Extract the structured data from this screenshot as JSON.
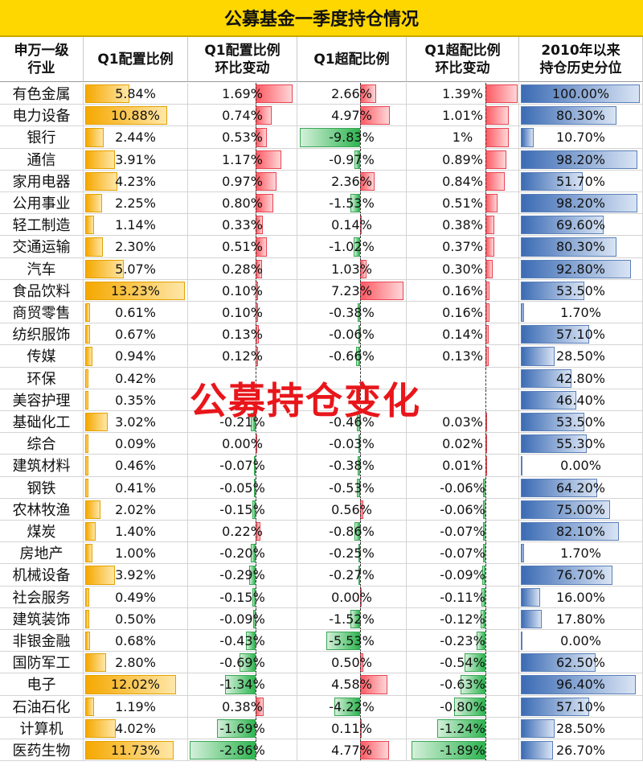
{
  "title": "公募基金一季度持仓情况",
  "overlay_text": "公募持仓变化",
  "headers": [
    "申万一级\n行业",
    "Q1配置比例",
    "Q1配置比例\n环比变动",
    "Q1超配比例",
    "Q1超配比例\n环比变动",
    "2010年以来\n持仓历史分位"
  ],
  "colors": {
    "header_bg": "#ffd700",
    "allocation": "#f5a800",
    "positive": "#ff5a63",
    "negative": "#2fb551",
    "percentile": "#3b6bb4",
    "overlay": "#e8161b"
  },
  "chart_data": {
    "type": "table",
    "title": "公募基金一季度持仓情况",
    "columns": [
      "申万一级行业",
      "Q1配置比例",
      "Q1配置比例环比变动",
      "Q1超配比例",
      "Q1超配比例环比变动",
      "2010年以来持仓历史分位"
    ],
    "rows": [
      [
        "有色金属",
        "5.84%",
        "1.69%",
        "2.66%",
        "1.39%",
        "100.00%"
      ],
      [
        "电力设备",
        "10.88%",
        "0.74%",
        "4.97%",
        "1.01%",
        "80.30%"
      ],
      [
        "银行",
        "2.44%",
        "0.53%",
        "-9.83%",
        "1%",
        "10.70%"
      ],
      [
        "通信",
        "3.91%",
        "1.17%",
        "-0.97%",
        "0.89%",
        "98.20%"
      ],
      [
        "家用电器",
        "4.23%",
        "0.97%",
        "2.36%",
        "0.84%",
        "51.70%"
      ],
      [
        "公用事业",
        "2.25%",
        "0.80%",
        "-1.53%",
        "0.51%",
        "98.20%"
      ],
      [
        "轻工制造",
        "1.14%",
        "0.33%",
        "0.14%",
        "0.38%",
        "69.60%"
      ],
      [
        "交通运输",
        "2.30%",
        "0.51%",
        "-1.02%",
        "0.37%",
        "80.30%"
      ],
      [
        "汽车",
        "5.07%",
        "0.28%",
        "1.03%",
        "0.30%",
        "92.80%"
      ],
      [
        "食品饮料",
        "13.23%",
        "0.10%",
        "7.23%",
        "0.16%",
        "53.50%"
      ],
      [
        "商贸零售",
        "0.61%",
        "0.10%",
        "-0.38%",
        "0.16%",
        "1.70%"
      ],
      [
        "纺织服饰",
        "0.67%",
        "0.13%",
        "-0.06%",
        "0.14%",
        "57.10%"
      ],
      [
        "传媒",
        "0.94%",
        "0.12%",
        "-0.66%",
        "0.13%",
        "28.50%"
      ],
      [
        "环保",
        "0.42%",
        "",
        "",
        "",
        "42.80%"
      ],
      [
        "美容护理",
        "0.35%",
        "",
        "",
        "",
        "46.40%"
      ],
      [
        "基础化工",
        "3.02%",
        "-0.21%",
        "-0.46%",
        "0.03%",
        "53.50%"
      ],
      [
        "综合",
        "0.09%",
        "0.00%",
        "-0.03%",
        "0.02%",
        "55.30%"
      ],
      [
        "建筑材料",
        "0.46%",
        "-0.07%",
        "-0.38%",
        "0.01%",
        "0.00%"
      ],
      [
        "钢铁",
        "0.41%",
        "-0.05%",
        "-0.53%",
        "-0.06%",
        "64.20%"
      ],
      [
        "农林牧渔",
        "2.02%",
        "-0.15%",
        "0.56%",
        "-0.06%",
        "75.00%"
      ],
      [
        "煤炭",
        "1.40%",
        "0.22%",
        "-0.86%",
        "-0.07%",
        "82.10%"
      ],
      [
        "房地产",
        "1.00%",
        "-0.20%",
        "-0.25%",
        "-0.07%",
        "1.70%"
      ],
      [
        "机械设备",
        "3.92%",
        "-0.29%",
        "-0.27%",
        "-0.09%",
        "76.70%"
      ],
      [
        "社会服务",
        "0.49%",
        "-0.15%",
        "0.00%",
        "-0.11%",
        "16.00%"
      ],
      [
        "建筑装饰",
        "0.50%",
        "-0.09%",
        "-1.52%",
        "-0.12%",
        "17.80%"
      ],
      [
        "非银金融",
        "0.68%",
        "-0.43%",
        "-5.53%",
        "-0.23%",
        "0.00%"
      ],
      [
        "国防军工",
        "2.80%",
        "-0.69%",
        "0.50%",
        "-0.54%",
        "62.50%"
      ],
      [
        "电子",
        "12.02%",
        "-1.34%",
        "4.58%",
        "-0.63%",
        "96.40%"
      ],
      [
        "石油石化",
        "1.19%",
        "0.38%",
        "-4.22%",
        "-0.80%",
        "57.10%"
      ],
      [
        "计算机",
        "4.02%",
        "-1.69%",
        "0.11%",
        "-1.24%",
        "28.50%"
      ],
      [
        "医药生物",
        "11.73%",
        "-2.86%",
        "4.77%",
        "-1.89%",
        "26.70%"
      ]
    ]
  }
}
